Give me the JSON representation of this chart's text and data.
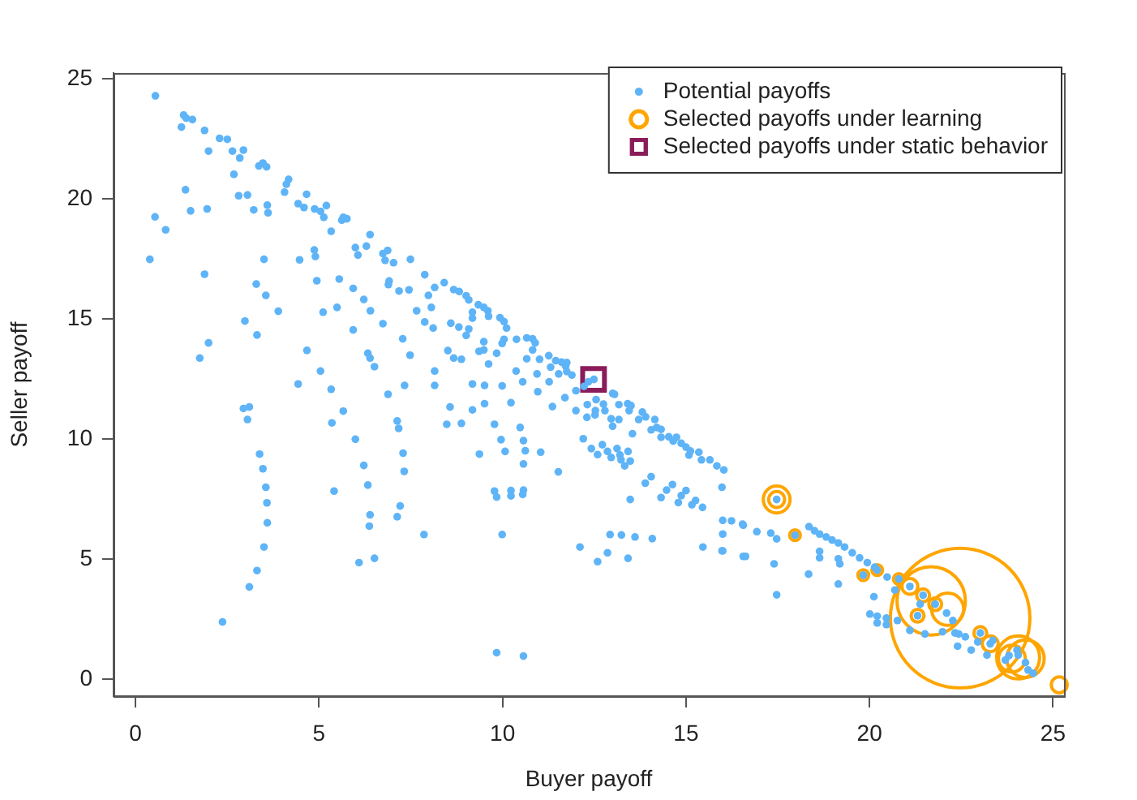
{
  "chart_data": {
    "type": "scatter",
    "xlabel": "Buyer payoff",
    "ylabel": "Seller payoff",
    "xlim": [
      -0.6,
      25.3
    ],
    "ylim": [
      -0.7,
      25.25
    ],
    "xticks": [
      0,
      5,
      10,
      15,
      20,
      25
    ],
    "yticks": [
      0,
      5,
      10,
      15,
      20,
      25
    ],
    "grid": false,
    "legend": "top right",
    "series": [
      {
        "name": "Potential payoffs",
        "type": "scatter",
        "marker": "circle",
        "color": "#5eb4f7",
        "x": [
          0.54,
          1.31,
          1.38,
          1.55,
          1.25,
          1.88,
          2.29,
          2.5,
          1.99,
          2.64,
          2.94,
          2.84,
          2.68,
          1.36,
          3.36,
          3.47,
          3.57,
          4.17,
          4.11,
          4.06,
          4.66,
          2.81,
          3.05,
          0.53,
          0.82,
          1.5,
          1.95,
          3.22,
          3.59,
          3.61,
          4.43,
          4.59,
          4.88,
          5.04,
          5.2,
          5.13,
          5.62,
          5.76,
          5.66,
          5.33,
          6.39,
          0.39,
          1.88,
          3.5,
          4.47,
          4.87,
          4.9,
          5.99,
          6.06,
          6.29,
          6.74,
          6.87,
          6.8,
          7.03,
          7.49,
          7.88,
          4.94,
          5.55,
          3.29,
          3.55,
          5.93,
          6.91,
          6.89,
          7.18,
          7.45,
          6.22,
          3.89,
          5.11,
          5.49,
          6.4,
          7.66,
          7.98,
          7.88,
          2.98,
          3.31,
          5.93,
          6.74,
          7.28,
          1.99,
          1.75,
          4.67,
          6.33,
          6.39,
          6.51,
          7.48,
          5.04,
          4.43,
          7.33,
          5.33,
          6.88,
          2.94,
          3.1,
          3.05,
          5.66,
          5.35,
          7.13,
          7.17,
          5.99,
          3.38,
          6.22,
          7.29,
          7.32,
          3.47,
          3.55,
          6.33,
          5.41,
          3.58,
          7.21,
          6.39,
          7.13,
          3.59,
          6.37,
          7.86,
          3.5,
          6.51,
          6.09,
          3.31,
          3.1,
          2.37,
          8.15,
          8.41,
          8.67,
          8.82,
          9.01,
          9.08,
          8.06,
          9.34,
          9.49,
          9.6,
          9.18,
          9.18,
          9.62,
          9.93,
          10.04,
          8.59,
          8.81,
          8.11,
          9.08,
          10.11,
          9.01,
          9.49,
          10.04,
          9.99,
          10.38,
          10.66,
          10.82,
          10.89,
          8.51,
          9.36,
          9.49,
          9.84,
          10.82,
          8.67,
          8.88,
          9.62,
          10.66,
          11.01,
          11.26,
          11.45,
          11.61,
          11.75,
          11.72,
          11.89,
          11.31,
          11.53,
          11.75,
          10.37,
          10.94,
          8.15,
          8.15,
          9.18,
          9.51,
          9.99,
          10.55,
          11.27,
          10.96,
          12.0,
          12.22,
          12.34,
          12.49,
          11.7,
          11.36,
          10.23,
          9.51,
          9.18,
          8.57,
          8.48,
          8.88,
          9.78,
          10.48,
          12.31,
          12.55,
          12.75,
          13.0,
          13.05,
          13.17,
          13.41,
          13.5,
          12.0,
          12.3,
          12.53,
          12.79,
          12.52,
          12.96,
          13.17,
          13.45,
          13.0,
          13.71,
          13.81,
          13.9,
          14.15,
          14.05,
          14.2,
          14.32,
          13.54,
          14.32,
          14.53,
          14.74,
          14.65,
          14.87,
          15.0,
          15.12,
          15.08,
          15.35,
          15.42,
          15.65,
          15.84,
          16.03,
          15.98,
          12.2,
          12.42,
          12.59,
          12.72,
          12.86,
          12.96,
          13.12,
          13.2,
          13.23,
          13.33,
          13.42,
          13.48,
          9.96,
          10.57,
          9.37,
          10.07,
          10.62,
          11.04,
          10.57,
          11.52,
          14.05,
          13.89,
          14.63,
          14.47,
          15.0,
          14.32,
          14.87,
          15.26,
          14.79,
          15.16,
          15.45,
          13.48,
          9.78,
          10.23,
          10.57,
          9.84,
          10.23,
          10.55,
          16.0,
          16.24,
          16.54,
          16.0,
          9.99,
          12.93,
          13.24,
          13.61,
          14.08,
          12.11,
          12.86,
          13.42,
          12.59,
          15.46,
          15.98,
          16.56,
          16.56,
          16.93,
          17.31,
          17.47,
          16.0,
          16.62,
          17.4,
          17.47,
          17.47,
          17.97,
          18.35,
          18.5,
          18.64,
          18.82,
          18.98,
          19.15,
          19.32,
          19.53,
          19.73,
          19.94,
          20.14,
          18.64,
          18.64,
          19.15,
          19.19,
          18.34,
          19.15,
          19.83,
          20.21,
          20.48,
          20.69,
          20.8,
          21.1,
          20.12,
          20.01,
          20.21,
          20.21,
          20.46,
          20.46,
          20.76,
          21.1,
          21.46,
          21.38,
          21.79,
          21.31,
          21.51,
          21.99,
          22.1,
          22.27,
          22.33,
          22.43,
          22.61,
          22.4,
          22.77,
          22.95,
          23.02,
          23.2,
          23.29,
          23.36,
          23.7,
          23.8,
          24.05,
          24.25,
          24.32,
          24.46,
          24.02,
          9.84,
          10.57
        ],
        "values": [
          24.3,
          23.5,
          23.37,
          23.31,
          23.0,
          22.86,
          22.53,
          22.49,
          22.0,
          22.0,
          22.04,
          21.71,
          21.03,
          20.39,
          21.38,
          21.5,
          21.34,
          20.82,
          20.62,
          20.29,
          20.2,
          20.14,
          20.17,
          19.26,
          18.72,
          19.51,
          19.59,
          19.55,
          19.75,
          19.43,
          19.81,
          19.65,
          19.59,
          19.49,
          19.73,
          19.24,
          19.12,
          19.18,
          19.24,
          18.66,
          18.52,
          17.49,
          16.87,
          17.49,
          17.47,
          17.88,
          17.61,
          17.98,
          17.67,
          18.04,
          17.73,
          17.86,
          17.45,
          17.35,
          17.49,
          16.85,
          16.6,
          16.67,
          16.46,
          15.99,
          16.28,
          16.59,
          16.44,
          16.17,
          16.22,
          15.82,
          15.33,
          15.29,
          15.49,
          15.35,
          15.35,
          15.99,
          14.88,
          14.92,
          14.34,
          14.55,
          14.81,
          14.18,
          14.01,
          13.38,
          13.7,
          13.58,
          13.38,
          13.02,
          13.5,
          12.84,
          12.3,
          12.24,
          12.08,
          11.87,
          11.28,
          11.34,
          10.82,
          11.17,
          10.68,
          10.76,
          10.45,
          10.0,
          9.38,
          8.91,
          9.42,
          8.66,
          8.77,
          8.0,
          8.09,
          7.84,
          7.35,
          7.22,
          6.85,
          6.77,
          6.52,
          6.38,
          6.03,
          5.51,
          5.04,
          4.86,
          4.53,
          3.85,
          2.39,
          16.32,
          16.52,
          16.23,
          16.15,
          15.97,
          15.8,
          15.49,
          15.6,
          15.49,
          15.35,
          15.29,
          15.04,
          15.12,
          15.06,
          14.9,
          14.83,
          14.67,
          14.63,
          14.59,
          14.63,
          14.32,
          14.06,
          14.16,
          13.99,
          14.16,
          14.22,
          14.18,
          14.01,
          13.69,
          13.66,
          13.72,
          13.58,
          13.72,
          13.38,
          13.33,
          13.13,
          13.35,
          13.33,
          13.48,
          13.27,
          13.21,
          13.19,
          13.04,
          12.67,
          13.0,
          12.72,
          12.82,
          12.84,
          12.72,
          12.84,
          12.24,
          12.3,
          12.24,
          12.22,
          12.39,
          12.39,
          11.98,
          12.02,
          12.2,
          12.39,
          12.49,
          11.73,
          11.36,
          11.52,
          11.48,
          11.22,
          11.34,
          10.62,
          10.66,
          10.62,
          10.49,
          11.44,
          11.65,
          11.46,
          11.91,
          11.87,
          11.44,
          11.48,
          11.4,
          11.19,
          10.91,
          11.19,
          11.19,
          11.01,
          10.85,
          10.82,
          11.19,
          10.54,
          10.82,
          11.13,
          10.93,
          10.82,
          10.39,
          10.49,
          10.41,
          10.23,
          10.08,
          10.1,
          10.08,
          9.92,
          9.83,
          9.67,
          9.51,
          9.34,
          9.46,
          9.14,
          9.14,
          8.89,
          8.72,
          8.0,
          10.02,
          9.61,
          9.36,
          9.77,
          9.49,
          9.24,
          9.61,
          9.34,
          9.14,
          8.89,
          9.49,
          9.09,
          9.98,
          9.94,
          9.38,
          9.49,
          9.52,
          9.46,
          8.97,
          8.64,
          8.44,
          8.17,
          8.11,
          7.88,
          7.86,
          7.57,
          7.65,
          7.45,
          7.36,
          7.27,
          7.16,
          7.49,
          7.84,
          7.86,
          7.88,
          7.59,
          7.64,
          7.7,
          6.62,
          6.6,
          6.46,
          6.05,
          6.03,
          6.03,
          6.01,
          5.93,
          5.86,
          5.51,
          5.27,
          5.04,
          4.9,
          5.51,
          5.35,
          5.12,
          6.42,
          6.15,
          6.09,
          5.85,
          5.35,
          5.12,
          4.81,
          3.52,
          7.49,
          6.0,
          6.36,
          6.19,
          6.05,
          5.93,
          5.8,
          5.68,
          5.51,
          5.27,
          5.06,
          4.86,
          4.67,
          5.33,
          5.06,
          5.02,
          4.81,
          4.38,
          3.97,
          4.34,
          4.55,
          4.26,
          3.72,
          4.18,
          3.87,
          3.44,
          2.72,
          2.63,
          2.35,
          2.55,
          2.28,
          2.45,
          2.04,
          3.5,
          3.13,
          3.13,
          2.65,
          1.89,
          1.98,
          2.76,
          2.45,
          1.93,
          1.89,
          1.77,
          1.38,
          1.22,
          1.56,
          1.93,
          1.01,
          1.48,
          1.62,
          0.8,
          0.99,
          1.01,
          0.7,
          0.39,
          0.25,
          1.22,
          1.11,
          0.97
        ]
      },
      {
        "name": "Selected payoffs under learning",
        "type": "bubble",
        "color": "#ffa500",
        "x": [
          17.47,
          17.47,
          17.97,
          19.83,
          20.21,
          20.8,
          21.1,
          21.68,
          22.13,
          21.46,
          21.79,
          21.31,
          22.47,
          23.02,
          23.29,
          24.05,
          24.25,
          23.88,
          25.17
        ],
        "values": [
          7.49,
          7.49,
          6.0,
          4.34,
          4.55,
          4.18,
          3.87,
          3.27,
          2.92,
          3.5,
          3.13,
          2.65,
          2.55,
          1.93,
          1.48,
          0.91,
          0.86,
          0.86,
          -0.23
        ],
        "sizes": [
          0.037,
          0.013,
          0.006,
          0.006,
          0.006,
          0.006,
          0.013,
          0.24,
          0.053,
          0.0085,
          0.0085,
          0.0085,
          1,
          0.0085,
          0.013,
          0.095,
          0.072,
          0.037,
          0.013
        ]
      },
      {
        "name": "Selected payoffs under static behavior",
        "type": "scatter",
        "marker": "square",
        "color": "#8b1c5a",
        "x": [
          12.48
        ],
        "values": [
          12.49
        ]
      }
    ]
  }
}
